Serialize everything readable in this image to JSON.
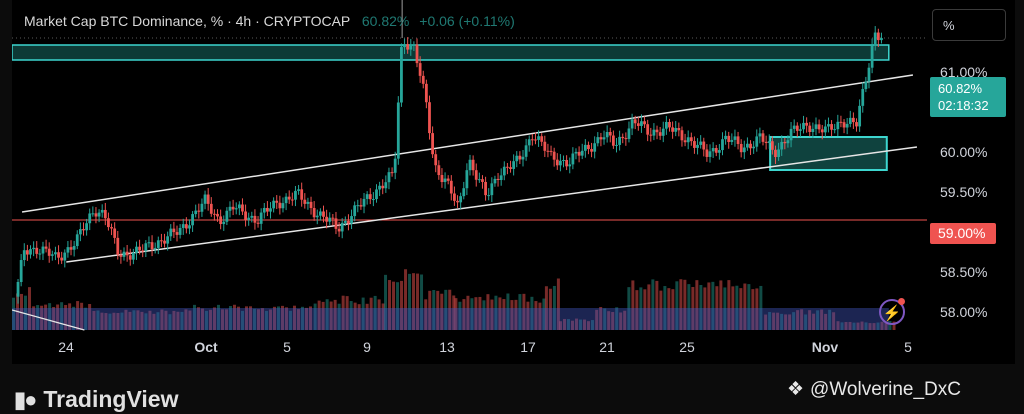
{
  "header": {
    "title": "Market Cap BTC Dominance, % · 4h · CRYPTOCAP",
    "value": "60.82%",
    "change": "+0.06 (+0.11%)"
  },
  "axis_unit_button": "%",
  "current_price": {
    "value": "60.82%",
    "countdown": "02:18:32"
  },
  "red_level_label": "59.00%",
  "footer": {
    "brand": "TradingView",
    "watermark": "@Wolverine_DxC"
  },
  "colors": {
    "up": "#26a69a",
    "down": "#ef5350",
    "channel": "#e6e6e6",
    "zone": "#3dd6cf",
    "volume_blue": "#3f51b5"
  },
  "chart_data": {
    "type": "candlestick",
    "title": "Market Cap BTC Dominance, % · 4h · CRYPTOCAP",
    "interval": "4h",
    "ylim": [
      57.9,
      61.2
    ],
    "y_ticks": [
      {
        "label": "61.00%",
        "value": 61.0
      },
      {
        "label": "60.82%",
        "value": 60.82
      },
      {
        "label": "60.00%",
        "value": 60.0
      },
      {
        "label": "59.50%",
        "value": 59.5
      },
      {
        "label": "59.00%",
        "value": 59.0
      },
      {
        "label": "58.50%",
        "value": 58.5
      },
      {
        "label": "58.00%",
        "value": 58.0
      }
    ],
    "x_ticks": [
      {
        "label": "24",
        "value": 1.5
      },
      {
        "label": "Oct",
        "value": 9.5
      },
      {
        "label": "5",
        "value": 13.5
      },
      {
        "label": "9",
        "value": 17.5
      },
      {
        "label": "13",
        "value": 21.5
      },
      {
        "label": "17",
        "value": 25.5
      },
      {
        "label": "21",
        "value": 29.5
      },
      {
        "label": "25",
        "value": 33.5
      },
      {
        "label": "Nov",
        "value": 40.5
      },
      {
        "label": "5",
        "value": 44.5
      }
    ],
    "x_range": [
      0,
      45.5
    ],
    "price_path": [
      [
        0,
        58.0
      ],
      [
        0.6,
        58.7
      ],
      [
        1.2,
        58.72
      ],
      [
        2.2,
        58.62
      ],
      [
        3.2,
        58.78
      ],
      [
        4.1,
        59.12
      ],
      [
        4.6,
        59.05
      ],
      [
        5.3,
        58.66
      ],
      [
        6.3,
        58.68
      ],
      [
        7.2,
        58.78
      ],
      [
        8.3,
        58.88
      ],
      [
        9.0,
        59.05
      ],
      [
        9.6,
        59.18
      ],
      [
        10.3,
        59.0
      ],
      [
        11.0,
        59.12
      ],
      [
        12.2,
        59.0
      ],
      [
        13.2,
        59.18
      ],
      [
        14.2,
        59.25
      ],
      [
        15.3,
        59.05
      ],
      [
        16.2,
        58.92
      ],
      [
        17.2,
        59.12
      ],
      [
        18.2,
        59.32
      ],
      [
        19.0,
        59.45
      ],
      [
        19.4,
        60.82
      ],
      [
        20.0,
        60.72
      ],
      [
        20.6,
        60.15
      ],
      [
        21.0,
        59.55
      ],
      [
        21.6,
        59.38
      ],
      [
        22.2,
        59.1
      ],
      [
        22.7,
        59.62
      ],
      [
        23.6,
        59.22
      ],
      [
        24.2,
        59.48
      ],
      [
        25.2,
        59.58
      ],
      [
        25.9,
        59.88
      ],
      [
        26.8,
        59.62
      ],
      [
        27.7,
        59.58
      ],
      [
        28.6,
        59.72
      ],
      [
        29.4,
        59.85
      ],
      [
        30.0,
        59.75
      ],
      [
        30.9,
        59.98
      ],
      [
        31.7,
        59.88
      ],
      [
        32.6,
        59.92
      ],
      [
        33.6,
        59.82
      ],
      [
        34.6,
        59.65
      ],
      [
        35.5,
        59.82
      ],
      [
        36.3,
        59.72
      ],
      [
        37.2,
        59.82
      ],
      [
        37.9,
        59.68
      ],
      [
        38.7,
        59.86
      ],
      [
        39.6,
        59.96
      ],
      [
        40.5,
        59.88
      ],
      [
        41.3,
        60.0
      ],
      [
        42.0,
        59.95
      ],
      [
        42.4,
        60.35
      ],
      [
        42.9,
        60.88
      ],
      [
        43.3,
        60.82
      ]
    ],
    "channel_upper": [
      [
        0.5,
        59.08
      ],
      [
        44.8,
        60.45
      ]
    ],
    "channel_lower": [
      [
        2.7,
        58.58
      ],
      [
        45.0,
        59.73
      ]
    ],
    "support_line": 59.0,
    "zone_top": {
      "y_top": 60.75,
      "y_bottom": 60.6,
      "x_start": 0,
      "x_end": 43.6
    },
    "zone_box": {
      "x_start": 37.7,
      "x_end": 43.5,
      "y_top": 59.83,
      "y_bottom": 59.5
    },
    "volume_bars": [
      {
        "x_start": 0,
        "x_end": 1.0,
        "height": 0.38
      },
      {
        "x_start": 1.0,
        "x_end": 4.0,
        "height": 0.26
      },
      {
        "x_start": 4.0,
        "x_end": 9.0,
        "height": 0.18
      },
      {
        "x_start": 9.0,
        "x_end": 15.0,
        "height": 0.22
      },
      {
        "x_start": 15.0,
        "x_end": 18.5,
        "height": 0.3
      },
      {
        "x_start": 18.5,
        "x_end": 20.5,
        "height": 0.55
      },
      {
        "x_start": 20.5,
        "x_end": 22.0,
        "height": 0.36
      },
      {
        "x_start": 22.0,
        "x_end": 26.5,
        "height": 0.32
      },
      {
        "x_start": 26.5,
        "x_end": 27.2,
        "height": 0.45
      },
      {
        "x_start": 27.2,
        "x_end": 29.0,
        "height": 0.1
      },
      {
        "x_start": 29.0,
        "x_end": 30.6,
        "height": 0.2
      },
      {
        "x_start": 30.6,
        "x_end": 37.4,
        "height": 0.46
      },
      {
        "x_start": 37.4,
        "x_end": 41.0,
        "height": 0.18
      },
      {
        "x_start": 41.0,
        "x_end": 44.0,
        "height": 0.08
      }
    ]
  }
}
